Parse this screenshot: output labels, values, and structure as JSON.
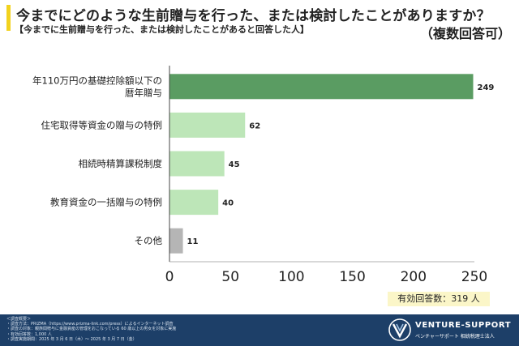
{
  "header": {
    "title": "今までにどのような生前贈与を行った、または検討したことがありますか？",
    "subtitle": "【今までに生前贈与を行った、または検討したことがあると回答した人】",
    "multiple_note": "（複数回答可）"
  },
  "chart_data": {
    "type": "bar",
    "orientation": "horizontal",
    "categories": [
      [
        "年110万円の基礎控除額以下の",
        "暦年贈与"
      ],
      [
        "住宅取得等資金の贈与の特例"
      ],
      [
        "相続時精算課税制度"
      ],
      [
        "教育資金の一括贈与の特例"
      ],
      [
        "その他"
      ]
    ],
    "values": [
      249,
      62,
      45,
      40,
      11
    ],
    "bar_colors": [
      "#5a9c62",
      "#bde6b8",
      "#bde6b8",
      "#bde6b8",
      "#b5b5b5"
    ],
    "xlim": [
      0,
      250
    ],
    "xticks": [
      0,
      50,
      100,
      150,
      200,
      250
    ],
    "grid": false
  },
  "badge": {
    "text": "有効回答数：319 人"
  },
  "footer": {
    "notes": [
      "＜調査概要＞",
      "・調査方法：PRIZMA（https://www.prizma-link.com/press）によるインターネット調査",
      "・調査の対象：親族間贈与に金融資産の管理をおこなっている 60 歳以上の男女を対象に実施",
      "・有効回答数：1,000 人",
      "・調査実施期間：2025 年 3 月 6 日（木）～ 2025 年 3 月 7 日（金）"
    ],
    "brand": "VENTURE-SUPPORT",
    "brand_sub": "ベンチャーサポート 相続税理士法人"
  }
}
